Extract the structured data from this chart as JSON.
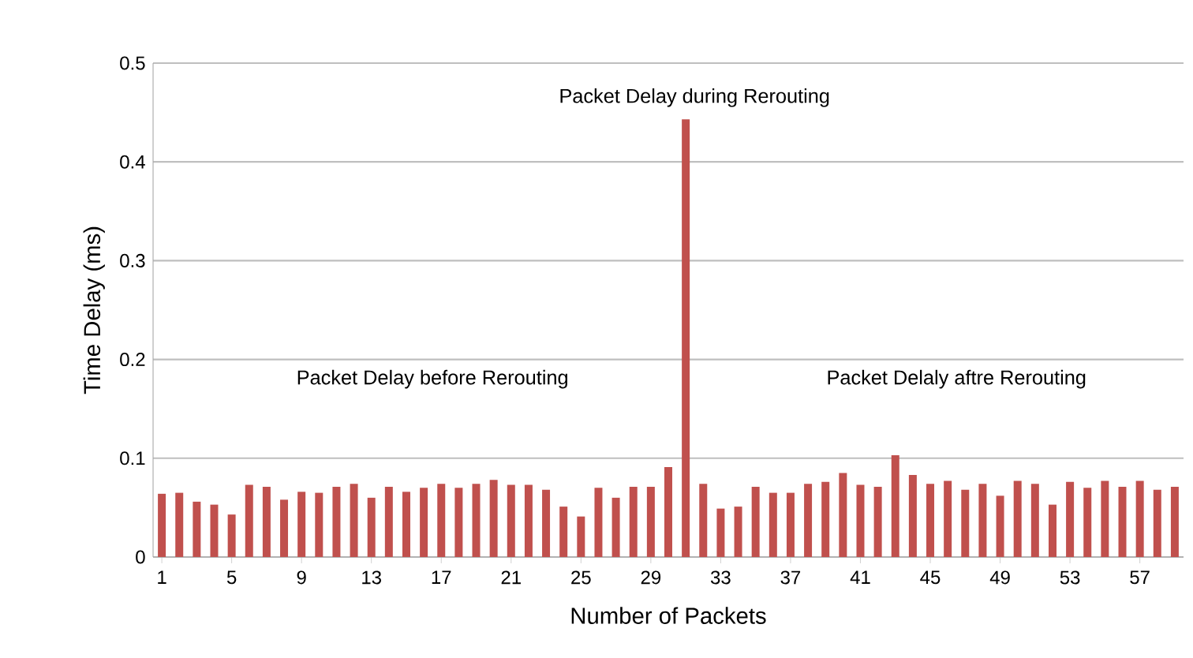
{
  "chart_data": {
    "type": "bar",
    "xlabel": "Number of  Packets",
    "ylabel": "Time Delay (ms)",
    "categories": [
      "1",
      null,
      null,
      null,
      "5",
      null,
      null,
      null,
      "9",
      null,
      null,
      null,
      "13",
      null,
      null,
      null,
      "17",
      null,
      null,
      null,
      "21",
      null,
      null,
      null,
      "25",
      null,
      null,
      null,
      "29",
      null,
      null,
      null,
      "33",
      null,
      null,
      null,
      "37",
      null,
      null,
      null,
      "41",
      null,
      null,
      null,
      "45",
      null,
      null,
      null,
      "49",
      null,
      null,
      null,
      "53",
      null,
      null,
      null,
      "57",
      null,
      null
    ],
    "values": [
      0.064,
      0.065,
      0.056,
      0.053,
      0.043,
      0.073,
      0.071,
      0.058,
      0.066,
      0.065,
      0.071,
      0.074,
      0.06,
      0.071,
      0.066,
      0.07,
      0.074,
      0.07,
      0.074,
      0.078,
      0.073,
      0.073,
      0.068,
      0.051,
      0.041,
      0.07,
      0.06,
      0.071,
      0.071,
      0.091,
      0.443,
      0.074,
      0.049,
      0.051,
      0.071,
      0.065,
      0.065,
      0.074,
      0.076,
      0.085,
      0.073,
      0.071,
      0.103,
      0.083,
      0.074,
      0.077,
      0.068,
      0.074,
      0.062,
      0.077,
      0.074,
      0.053,
      0.076,
      0.07,
      0.077,
      0.071,
      0.077,
      0.068,
      0.071
    ],
    "color": "#c0504d",
    "ylim": [
      0,
      0.5
    ],
    "yticks": [
      0,
      0.1,
      0.2,
      0.3,
      0.4,
      0.5
    ],
    "grid": "y",
    "annotations": [
      "Packet Delay during Rerouting",
      "Packet Delay before Rerouting",
      "Packet Delaly aftre Rerouting"
    ]
  }
}
